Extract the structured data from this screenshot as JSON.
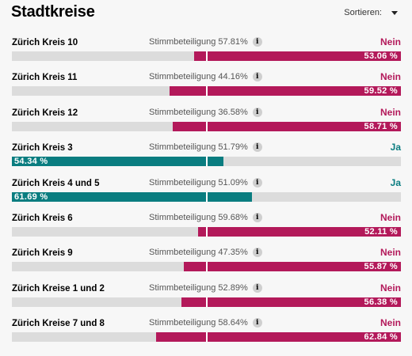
{
  "header": {
    "title": "Stadtkreise",
    "sort_label": "Sortieren:"
  },
  "colors": {
    "nein": "#b3195a",
    "ja": "#0a7d80",
    "bar_bg": "#dcdcdc"
  },
  "rows": [
    {
      "name": "Zürich Kreis 10",
      "turnout": "Stimmbeteiligung 57.81%",
      "result": "Nein",
      "percent_label": "53.06 %",
      "percent": 53.06
    },
    {
      "name": "Zürich Kreis 11",
      "turnout": "Stimmbeteiligung 44.16%",
      "result": "Nein",
      "percent_label": "59.52 %",
      "percent": 59.52
    },
    {
      "name": "Zürich Kreis 12",
      "turnout": "Stimmbeteiligung 36.58%",
      "result": "Nein",
      "percent_label": "58.71 %",
      "percent": 58.71
    },
    {
      "name": "Zürich Kreis 3",
      "turnout": "Stimmbeteiligung 51.79%",
      "result": "Ja",
      "percent_label": "54.34 %",
      "percent": 54.34
    },
    {
      "name": "Zürich Kreis 4 und 5",
      "turnout": "Stimmbeteiligung 51.09%",
      "result": "Ja",
      "percent_label": "61.69 %",
      "percent": 61.69
    },
    {
      "name": "Zürich Kreis 6",
      "turnout": "Stimmbeteiligung 59.68%",
      "result": "Nein",
      "percent_label": "52.11 %",
      "percent": 52.11
    },
    {
      "name": "Zürich Kreis 9",
      "turnout": "Stimmbeteiligung 47.35%",
      "result": "Nein",
      "percent_label": "55.87 %",
      "percent": 55.87
    },
    {
      "name": "Zürich Kreise 1 und 2",
      "turnout": "Stimmbeteiligung 52.89%",
      "result": "Nein",
      "percent_label": "56.38 %",
      "percent": 56.38
    },
    {
      "name": "Zürich Kreise 7 und 8",
      "turnout": "Stimmbeteiligung 58.64%",
      "result": "Nein",
      "percent_label": "62.84 %",
      "percent": 62.84
    }
  ]
}
